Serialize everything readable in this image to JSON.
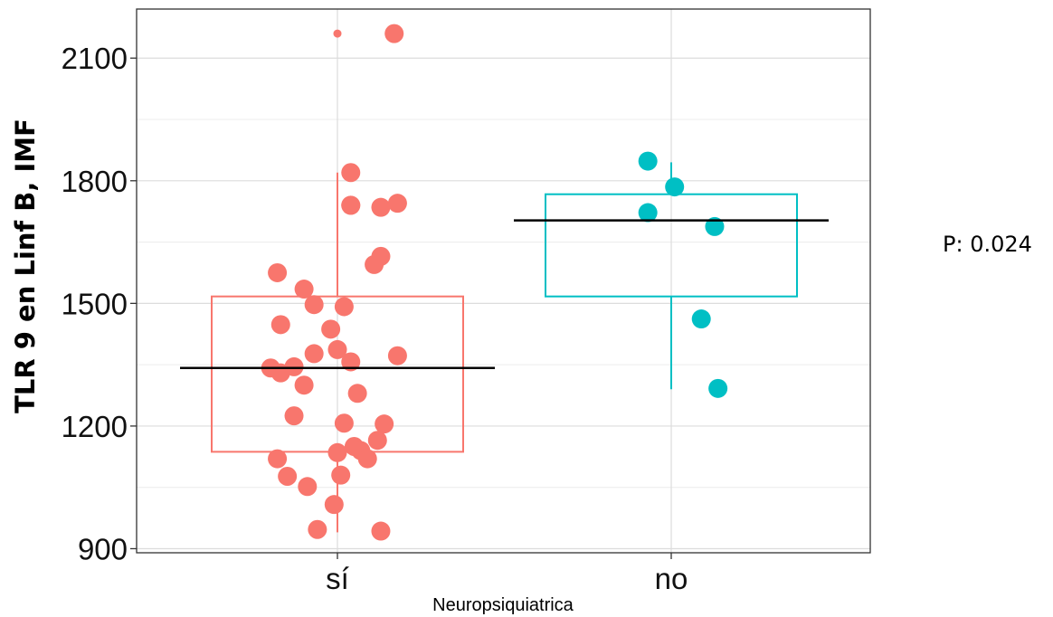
{
  "chart_data": {
    "type": "box-jitter",
    "xlabel": "Neuropsiquiatrica",
    "ylabel": "TLR 9 en Linf B, IMF",
    "ylim": [
      890,
      2220
    ],
    "yticks": [
      900,
      1200,
      1500,
      1800,
      2100
    ],
    "categories": [
      "sí",
      "no"
    ],
    "grid": true,
    "legend": "none",
    "annotation": "P: 0.024",
    "colors": {
      "sí": "#F8766D",
      "no": "#00BFC4",
      "median": "#000000"
    },
    "groups": [
      {
        "category": "sí",
        "box": {
          "q1": 1137,
          "median": 1342,
          "q3": 1517,
          "whisker_low": 940,
          "whisker_high": 1820
        },
        "outliers": [
          2160
        ],
        "points": [
          {
            "x": 0.17,
            "y": 2160
          },
          {
            "x": 0.04,
            "y": 1820
          },
          {
            "x": 0.04,
            "y": 1740
          },
          {
            "x": 0.04,
            "y": 1740
          },
          {
            "x": 0.13,
            "y": 1735
          },
          {
            "x": 0.18,
            "y": 1745
          },
          {
            "x": 0.13,
            "y": 1615
          },
          {
            "x": 0.11,
            "y": 1595
          },
          {
            "x": -0.18,
            "y": 1575
          },
          {
            "x": -0.1,
            "y": 1535
          },
          {
            "x": -0.07,
            "y": 1497
          },
          {
            "x": 0.02,
            "y": 1492
          },
          {
            "x": -0.17,
            "y": 1448
          },
          {
            "x": -0.02,
            "y": 1437
          },
          {
            "x": -0.07,
            "y": 1377
          },
          {
            "x": 0.0,
            "y": 1387
          },
          {
            "x": 0.18,
            "y": 1372
          },
          {
            "x": 0.04,
            "y": 1357
          },
          {
            "x": -0.2,
            "y": 1342
          },
          {
            "x": -0.13,
            "y": 1345
          },
          {
            "x": -0.17,
            "y": 1330
          },
          {
            "x": -0.1,
            "y": 1300
          },
          {
            "x": 0.06,
            "y": 1280
          },
          {
            "x": -0.13,
            "y": 1225
          },
          {
            "x": 0.02,
            "y": 1207
          },
          {
            "x": 0.14,
            "y": 1205
          },
          {
            "x": 0.12,
            "y": 1165
          },
          {
            "x": 0.05,
            "y": 1150
          },
          {
            "x": 0.07,
            "y": 1140
          },
          {
            "x": 0.0,
            "y": 1135
          },
          {
            "x": 0.09,
            "y": 1120
          },
          {
            "x": -0.18,
            "y": 1120
          },
          {
            "x": -0.15,
            "y": 1077
          },
          {
            "x": 0.01,
            "y": 1080
          },
          {
            "x": -0.09,
            "y": 1052
          },
          {
            "x": -0.01,
            "y": 1008
          },
          {
            "x": -0.06,
            "y": 947
          },
          {
            "x": 0.13,
            "y": 943
          }
        ]
      },
      {
        "category": "no",
        "box": {
          "q1": 1517,
          "median": 1703,
          "q3": 1767,
          "whisker_low": 1290,
          "whisker_high": 1845
        },
        "outliers": [],
        "points": [
          {
            "x": -0.07,
            "y": 1848
          },
          {
            "x": 0.01,
            "y": 1785
          },
          {
            "x": -0.07,
            "y": 1722
          },
          {
            "x": 0.13,
            "y": 1688
          },
          {
            "x": 0.09,
            "y": 1462
          },
          {
            "x": 0.14,
            "y": 1292
          }
        ]
      }
    ]
  }
}
